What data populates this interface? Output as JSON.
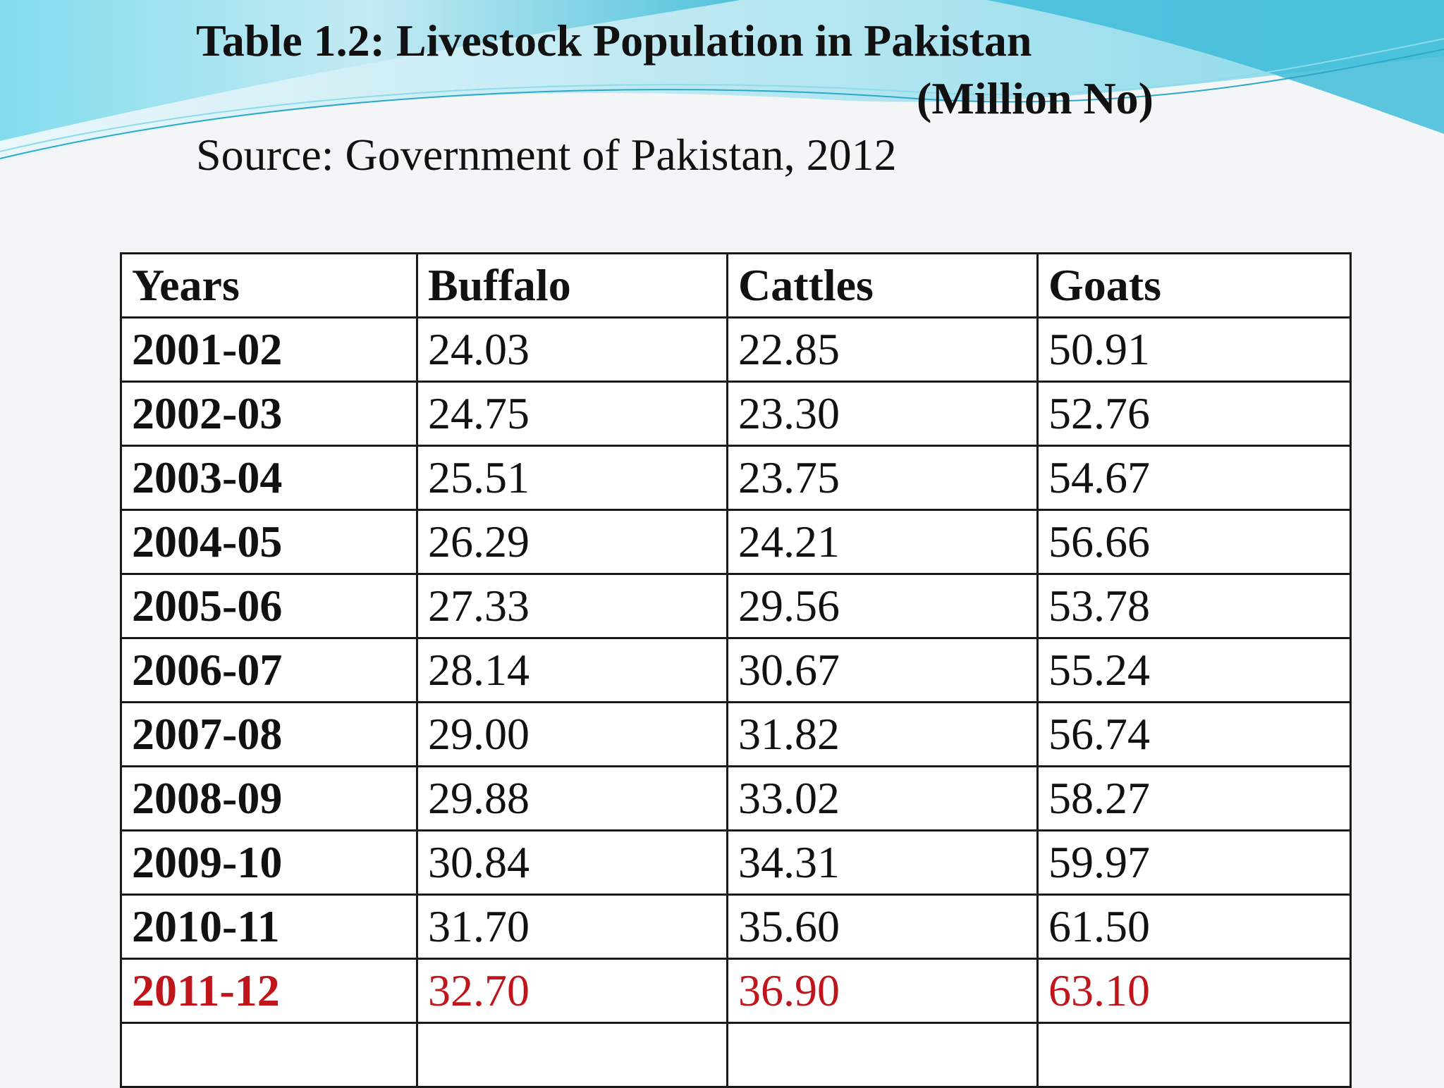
{
  "title": "Table 1.2: Livestock Population in Pakistan",
  "unit": "(Million No)",
  "source": "Source: Government of Pakistan, 2012",
  "colors": {
    "highlight_row": "#c0161b",
    "wave_light": "#bfe9f3",
    "wave_mid": "#6fd0e6",
    "wave_dark": "#2fb6d4"
  },
  "table": {
    "headers": [
      "Years",
      "Buffalo",
      "Cattles",
      "Goats"
    ],
    "rows": [
      {
        "year": "2001-02",
        "buffalo": "24.03",
        "cattles": "22.85",
        "goats": "50.91"
      },
      {
        "year": "2002-03",
        "buffalo": "24.75",
        "cattles": "23.30",
        "goats": "52.76"
      },
      {
        "year": "2003-04",
        "buffalo": "25.51",
        "cattles": "23.75",
        "goats": "54.67"
      },
      {
        "year": "2004-05",
        "buffalo": "26.29",
        "cattles": "24.21",
        "goats": "56.66"
      },
      {
        "year": "2005-06",
        "buffalo": "27.33",
        "cattles": "29.56",
        "goats": "53.78"
      },
      {
        "year": "2006-07",
        "buffalo": "28.14",
        "cattles": "30.67",
        "goats": "55.24"
      },
      {
        "year": "2007-08",
        "buffalo": "29.00",
        "cattles": "31.82",
        "goats": "56.74"
      },
      {
        "year": "2008-09",
        "buffalo": "29.88",
        "cattles": "33.02",
        "goats": "58.27"
      },
      {
        "year": "2009-10",
        "buffalo": "30.84",
        "cattles": "34.31",
        "goats": "59.97"
      },
      {
        "year": "2010-11",
        "buffalo": "31.70",
        "cattles": "35.60",
        "goats": "61.50"
      },
      {
        "year": "2011-12",
        "buffalo": "32.70",
        "cattles": "36.90",
        "goats": "63.10"
      },
      {
        "year": "",
        "buffalo": "",
        "cattles": "",
        "goats": ""
      }
    ],
    "highlight_index": 10
  }
}
